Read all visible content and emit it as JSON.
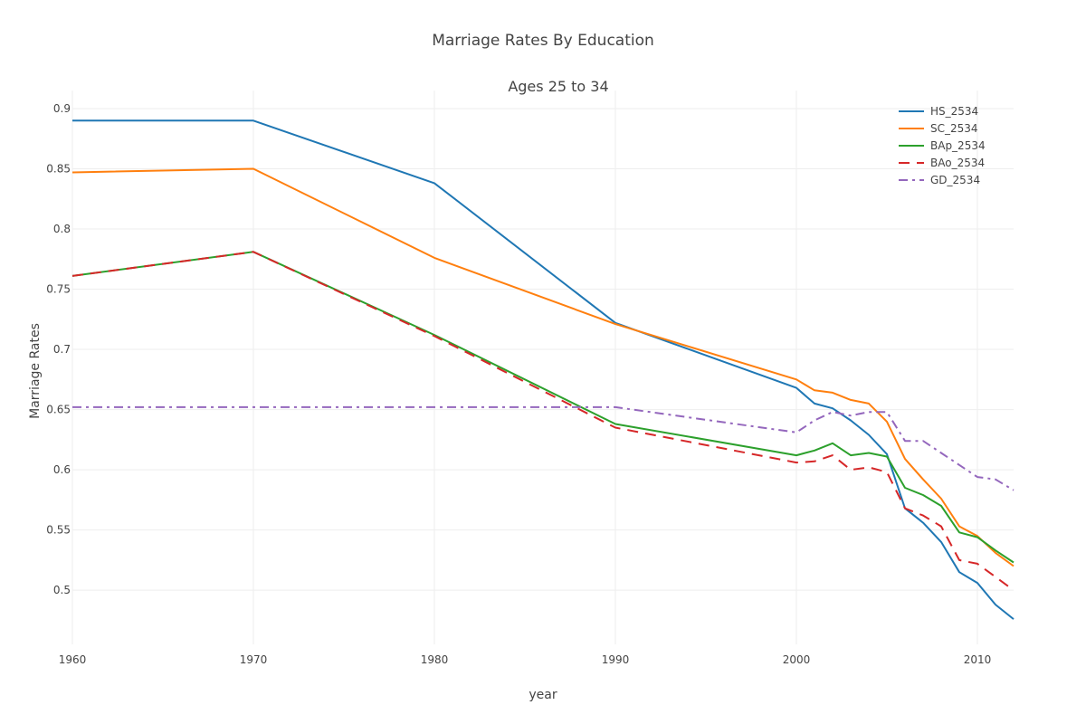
{
  "chart_data": {
    "type": "line",
    "title": "Marriage Rates By Education",
    "subtitle": "Ages 25 to 34",
    "xlabel": "year",
    "ylabel": "Marriage Rates",
    "xlim": [
      1960,
      2012
    ],
    "ylim": [
      0.455,
      0.915
    ],
    "x_ticks": [
      "1960",
      "1970",
      "1980",
      "1990",
      "2000",
      "2010"
    ],
    "y_ticks": [
      "0.5",
      "0.55",
      "0.6",
      "0.65",
      "0.7",
      "0.75",
      "0.8",
      "0.85",
      "0.9"
    ],
    "grid": true,
    "legend_position": "top-right",
    "x": [
      1960,
      1970,
      1980,
      1990,
      2000,
      2001,
      2002,
      2003,
      2004,
      2005,
      2006,
      2007,
      2008,
      2009,
      2010,
      2011,
      2012
    ],
    "series": [
      {
        "name": "HS_2534",
        "color": "#1f77b4",
        "dash": "solid",
        "values": [
          0.89,
          0.89,
          0.838,
          0.722,
          0.668,
          0.655,
          0.651,
          0.641,
          0.629,
          0.613,
          0.568,
          0.556,
          0.54,
          0.515,
          0.506,
          0.488,
          0.476
        ]
      },
      {
        "name": "SC_2534",
        "color": "#ff7f0e",
        "dash": "solid",
        "values": [
          0.847,
          0.85,
          0.776,
          0.721,
          0.675,
          0.666,
          0.664,
          0.658,
          0.655,
          0.64,
          0.609,
          0.592,
          0.576,
          0.553,
          0.545,
          0.531,
          0.52
        ]
      },
      {
        "name": "BAp_2534",
        "color": "#2ca02c",
        "dash": "solid",
        "values": [
          0.761,
          0.781,
          0.712,
          0.638,
          0.612,
          0.616,
          0.622,
          0.612,
          0.614,
          0.611,
          0.585,
          0.579,
          0.57,
          0.548,
          0.544,
          0.533,
          0.523
        ]
      },
      {
        "name": "BAo_2534",
        "color": "#d62728",
        "dash": "dash",
        "values": [
          0.761,
          0.781,
          0.711,
          0.635,
          0.606,
          0.607,
          0.612,
          0.6,
          0.602,
          0.598,
          0.568,
          0.562,
          0.553,
          0.525,
          0.522,
          0.511,
          0.5
        ]
      },
      {
        "name": "GD_2534",
        "color": "#9467bd",
        "dash": "dashdot",
        "values": [
          0.652,
          0.652,
          0.652,
          0.652,
          0.631,
          0.641,
          0.648,
          0.645,
          0.648,
          0.648,
          0.624,
          0.624,
          0.614,
          0.604,
          0.594,
          0.592,
          0.583
        ]
      }
    ]
  }
}
